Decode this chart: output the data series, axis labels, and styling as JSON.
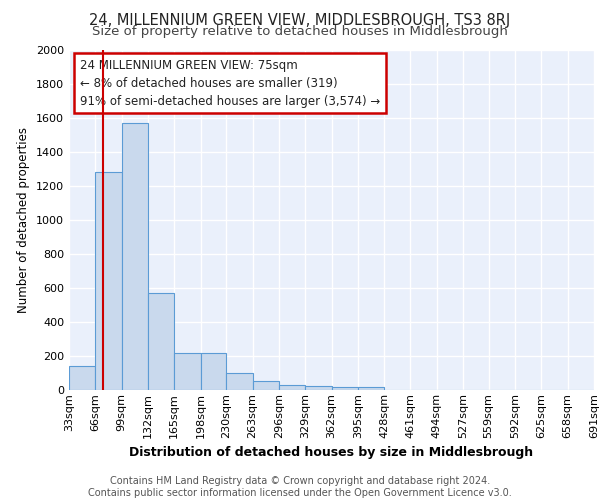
{
  "title": "24, MILLENNIUM GREEN VIEW, MIDDLESBROUGH, TS3 8RJ",
  "subtitle": "Size of property relative to detached houses in Middlesbrough",
  "xlabel": "Distribution of detached houses by size in Middlesbrough",
  "ylabel": "Number of detached properties",
  "bin_edges": [
    33,
    66,
    99,
    132,
    165,
    198,
    230,
    263,
    296,
    329,
    362,
    395,
    428,
    461,
    494,
    527,
    559,
    592,
    625,
    658,
    691
  ],
  "bar_heights": [
    140,
    1280,
    1570,
    570,
    220,
    215,
    100,
    55,
    30,
    25,
    20,
    20,
    0,
    0,
    0,
    0,
    0,
    0,
    0,
    0
  ],
  "bar_color": "#c9d9ed",
  "bar_edge_color": "#5b9bd5",
  "background_color": "#eaf0fb",
  "grid_color": "#ffffff",
  "vline_x": 75,
  "vline_color": "#cc0000",
  "annotation_text": "24 MILLENNIUM GREEN VIEW: 75sqm\n← 8% of detached houses are smaller (319)\n91% of semi-detached houses are larger (3,574) →",
  "annotation_box_color": "#cc0000",
  "ylim": [
    0,
    2000
  ],
  "yticks": [
    0,
    200,
    400,
    600,
    800,
    1000,
    1200,
    1400,
    1600,
    1800,
    2000
  ],
  "footer_text": "Contains HM Land Registry data © Crown copyright and database right 2024.\nContains public sector information licensed under the Open Government Licence v3.0.",
  "title_fontsize": 10.5,
  "subtitle_fontsize": 9.5,
  "xlabel_fontsize": 9,
  "ylabel_fontsize": 8.5,
  "tick_fontsize": 8,
  "annotation_fontsize": 8.5,
  "footer_fontsize": 7
}
